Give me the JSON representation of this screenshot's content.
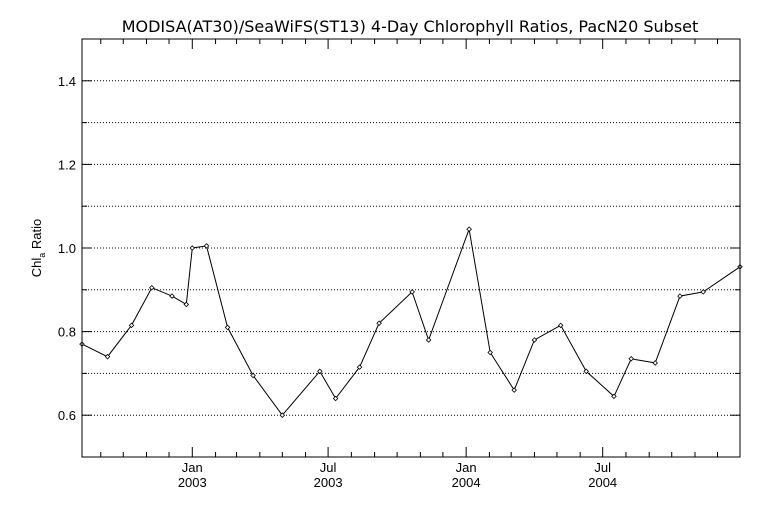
{
  "chart_data": {
    "type": "line",
    "title": "MODISA(AT30)/SeaWiFS(ST13) 4-Day Chlorophyll Ratios, PacN20 Subset",
    "ylabel_main": "Chl",
    "ylabel_sub": "a",
    "ylabel_rest": " Ratio",
    "xlabel": "",
    "x_range": [
      "2002-08-07",
      "2004-12-31"
    ],
    "ylim": [
      0.5,
      1.5
    ],
    "y_ticks": [
      0.6,
      0.8,
      1.0,
      1.2,
      1.4
    ],
    "y_tick_labels": [
      "0.6",
      "0.8",
      "1.0",
      "1.2",
      "1.4"
    ],
    "y_gridlines": [
      0.6,
      0.7,
      0.8,
      0.9,
      1.0,
      1.1,
      1.2,
      1.3,
      1.4
    ],
    "grid": "dotted horizontal",
    "x_ticks": [
      {
        "date": "2003-01-01",
        "month": "Jan",
        "year": "2003"
      },
      {
        "date": "2003-07-01",
        "month": "Jul",
        "year": "2003"
      },
      {
        "date": "2004-01-01",
        "month": "Jan",
        "year": "2004"
      },
      {
        "date": "2004-07-01",
        "month": "Jul",
        "year": "2004"
      }
    ],
    "x_minor_tick_dates": [
      "2002-09-01",
      "2002-10-01",
      "2002-11-01",
      "2002-12-01",
      "2003-02-01",
      "2003-03-01",
      "2003-04-01",
      "2003-05-01",
      "2003-06-01",
      "2003-08-01",
      "2003-09-01",
      "2003-10-01",
      "2003-11-01",
      "2003-12-01",
      "2004-02-01",
      "2004-03-01",
      "2004-04-01",
      "2004-05-01",
      "2004-06-01",
      "2004-08-01",
      "2004-09-01",
      "2004-10-01",
      "2004-11-01",
      "2004-12-01"
    ],
    "series": [
      {
        "color": "#000000",
        "marker": "diamond",
        "points": [
          {
            "x": "2002-08-07",
            "y": 0.77
          },
          {
            "x": "2002-09-10",
            "y": 0.74
          },
          {
            "x": "2002-10-12",
            "y": 0.815
          },
          {
            "x": "2002-11-08",
            "y": 0.905
          },
          {
            "x": "2002-12-05",
            "y": 0.885
          },
          {
            "x": "2002-12-24",
            "y": 0.865
          },
          {
            "x": "2003-01-01",
            "y": 1.0
          },
          {
            "x": "2003-01-20",
            "y": 1.005
          },
          {
            "x": "2003-02-17",
            "y": 0.81
          },
          {
            "x": "2003-03-23",
            "y": 0.695
          },
          {
            "x": "2003-05-01",
            "y": 0.6
          },
          {
            "x": "2003-06-20",
            "y": 0.705
          },
          {
            "x": "2003-07-11",
            "y": 0.64
          },
          {
            "x": "2003-08-12",
            "y": 0.715
          },
          {
            "x": "2003-09-07",
            "y": 0.82
          },
          {
            "x": "2003-10-21",
            "y": 0.895
          },
          {
            "x": "2003-11-12",
            "y": 0.78
          },
          {
            "x": "2004-01-05",
            "y": 1.045
          },
          {
            "x": "2004-02-02",
            "y": 0.75
          },
          {
            "x": "2004-03-05",
            "y": 0.66
          },
          {
            "x": "2004-04-01",
            "y": 0.78
          },
          {
            "x": "2004-05-06",
            "y": 0.815
          },
          {
            "x": "2004-06-09",
            "y": 0.705
          },
          {
            "x": "2004-07-16",
            "y": 0.645
          },
          {
            "x": "2004-08-08",
            "y": 0.735
          },
          {
            "x": "2004-09-09",
            "y": 0.725
          },
          {
            "x": "2004-10-12",
            "y": 0.885
          },
          {
            "x": "2004-11-12",
            "y": 0.895
          },
          {
            "x": "2004-12-31",
            "y": 0.955
          }
        ]
      }
    ]
  }
}
